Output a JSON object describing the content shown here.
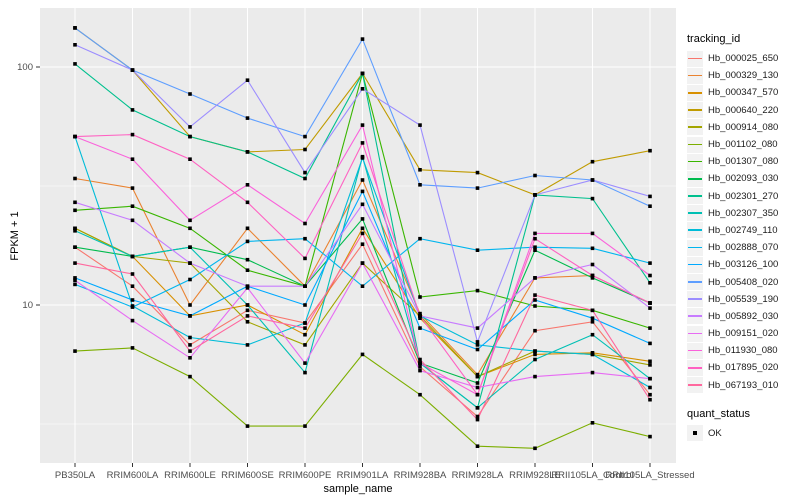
{
  "chart_data": {
    "type": "line",
    "title": "",
    "xlabel": "sample_name",
    "ylabel": "FPKM + 1",
    "y_scale": "log10",
    "ylim": [
      2.17,
      173
    ],
    "grid": true,
    "y_ticks": [
      {
        "label": "100",
        "value": 100
      },
      {
        "label": "10",
        "value": 10
      }
    ],
    "y_minor_gridline_values": [
      31.62,
      3.162
    ],
    "categories": [
      "PB350LA",
      "RRIM600LA",
      "RRIM600LE",
      "RRIM600SE",
      "RRIM600PE",
      "RRIM901LA",
      "RRIM928BA",
      "RRIM928LA",
      "RRIM928LE",
      "RRII105LA_Control",
      "RRII105LA_Stressed"
    ],
    "legend": {
      "title": "tracking_id",
      "position": "right"
    },
    "legend2": {
      "title": "quant_status",
      "items": [
        {
          "label": "OK",
          "marker": "black-square"
        }
      ]
    },
    "points": {
      "shape": "filled-square",
      "color": "#000000"
    },
    "colors": {
      "panel_bg": "#EBEBEB",
      "grid": "#FFFFFF",
      "tick_text": "#4D4D4D",
      "axis_title": "#000000",
      "legend_key_bg": "#F2F2F2",
      "point": "#000000"
    },
    "series": [
      {
        "name": "Hb_000025_650",
        "color": "#F8766D",
        "values": [
          17.5,
          12,
          6.8,
          9.5,
          8.4,
          18,
          5.5,
          3.4,
          7.8,
          8.5,
          4.2
        ]
      },
      {
        "name": "Hb_000329_130",
        "color": "#EA8331",
        "values": [
          34,
          31,
          10,
          21,
          12,
          33.5,
          9.2,
          5.1,
          13,
          13.3,
          10.2
        ]
      },
      {
        "name": "Hb_000347_570",
        "color": "#D89000",
        "values": [
          21,
          16,
          9,
          10,
          7.5,
          21,
          8.8,
          5,
          6.2,
          6.3,
          5.8
        ]
      },
      {
        "name": "Hb_000640_220",
        "color": "#C09B00",
        "values": [
          146,
          97,
          51,
          44,
          45,
          94,
          37,
          36,
          29,
          40,
          44.5
        ]
      },
      {
        "name": "Hb_000914_080",
        "color": "#A3A500",
        "values": [
          21,
          16,
          15,
          8.5,
          6.8,
          15,
          9,
          5,
          6.4,
          6.2,
          5.6
        ]
      },
      {
        "name": "Hb_001102_080",
        "color": "#7CAE00",
        "values": [
          6.4,
          6.6,
          5,
          3.1,
          3.1,
          6.2,
          4.2,
          2.55,
          2.5,
          3.2,
          2.8
        ]
      },
      {
        "name": "Hb_001307_080",
        "color": "#39B600",
        "values": [
          25,
          26,
          21,
          14,
          12,
          94,
          10.8,
          11.5,
          9.9,
          9.5,
          8
        ]
      },
      {
        "name": "Hb_002093_030",
        "color": "#00BB4E",
        "values": [
          17.5,
          16,
          17.5,
          15.5,
          12,
          23,
          5.7,
          4.7,
          17,
          13,
          10.2
        ]
      },
      {
        "name": "Hb_002301_270",
        "color": "#00C08E",
        "values": [
          103,
          66,
          51,
          44,
          34,
          94,
          5.7,
          3.7,
          29,
          28,
          12.4
        ]
      },
      {
        "name": "Hb_002307_350",
        "color": "#00C0B4",
        "values": [
          20.5,
          16,
          17.5,
          10,
          5.2,
          42,
          5.7,
          3.7,
          5.9,
          7.5,
          4.9
        ]
      },
      {
        "name": "Hb_002749_110",
        "color": "#00BCD8",
        "values": [
          51,
          9.9,
          7.3,
          6.8,
          8.4,
          41.5,
          9,
          6.8,
          6.4,
          6.2,
          4.5
        ]
      },
      {
        "name": "Hb_002888_070",
        "color": "#00B5EE",
        "values": [
          12.2,
          9.8,
          12.8,
          18.5,
          19,
          12,
          19,
          17,
          17.5,
          17.3,
          15
        ]
      },
      {
        "name": "Hb_003126_100",
        "color": "#00A9FF",
        "values": [
          13,
          10.5,
          9,
          12,
          10,
          30,
          8,
          6.5,
          10.5,
          8.8,
          6.9
        ]
      },
      {
        "name": "Hb_005408_020",
        "color": "#5E9EFF",
        "values": [
          146,
          97,
          77,
          61,
          51,
          131,
          32,
          31,
          35,
          33.5,
          26
        ]
      },
      {
        "name": "Hb_005539_190",
        "color": "#9C8DFF",
        "values": [
          124,
          97,
          56,
          88,
          36,
          81,
          57,
          7,
          29,
          33.5,
          28.6
        ]
      },
      {
        "name": "Hb_005892_030",
        "color": "#C77CFF",
        "values": [
          27,
          22.7,
          15,
          12,
          12,
          26.5,
          9,
          8,
          13,
          14.8,
          9.7
        ]
      },
      {
        "name": "Hb_009151_020",
        "color": "#E76BF3",
        "values": [
          12.7,
          8.6,
          6,
          11.8,
          5.7,
          15,
          5.3,
          4.5,
          5,
          5.2,
          4.9
        ]
      },
      {
        "name": "Hb_011930_080",
        "color": "#FA62DB",
        "values": [
          51,
          41,
          22.7,
          32,
          22,
          57,
          5.7,
          4.2,
          20,
          20,
          13.3
        ]
      },
      {
        "name": "Hb_017895_020",
        "color": "#FF61C2",
        "values": [
          51,
          52,
          41,
          27,
          15.7,
          48,
          9,
          4.2,
          19,
          13.3,
          10.2
        ]
      },
      {
        "name": "Hb_067193_010",
        "color": "#FF689E",
        "values": [
          15,
          13.5,
          6.4,
          9,
          8,
          20,
          5.9,
          3.3,
          11,
          9.5,
          4
        ]
      }
    ]
  }
}
